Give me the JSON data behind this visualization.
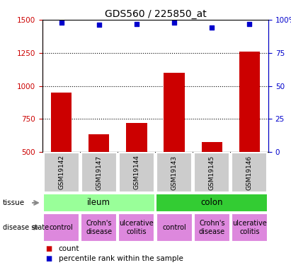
{
  "title": "GDS560 / 225850_at",
  "samples": [
    "GSM19142",
    "GSM19147",
    "GSM19144",
    "GSM19143",
    "GSM19145",
    "GSM19146"
  ],
  "bar_values": [
    950,
    635,
    720,
    1100,
    575,
    1260
  ],
  "dot_values": [
    98,
    96,
    97,
    98,
    94,
    97
  ],
  "ylim_left": [
    500,
    1500
  ],
  "ylim_right": [
    0,
    100
  ],
  "yticks_left": [
    500,
    750,
    1000,
    1250,
    1500
  ],
  "yticks_right": [
    0,
    25,
    50,
    75,
    100
  ],
  "bar_color": "#cc0000",
  "dot_color": "#0000cc",
  "tissue_labels": [
    "ileum",
    "colon"
  ],
  "tissue_colors": [
    "#99ff99",
    "#33cc33"
  ],
  "disease_labels": [
    "control",
    "Crohn's\ndisease",
    "ulcerative\ncolitis",
    "control",
    "Crohn's\ndisease",
    "ulcerative\ncolitis"
  ],
  "disease_color": "#dd88dd",
  "sample_bg_color": "#cccccc",
  "legend_count_color": "#cc0000",
  "legend_dot_color": "#0000cc",
  "grid_color": "#000000",
  "title_fontsize": 10,
  "tick_fontsize": 7.5,
  "tissue_fontsize": 8.5,
  "disease_fontsize": 7,
  "sample_fontsize": 6.5
}
